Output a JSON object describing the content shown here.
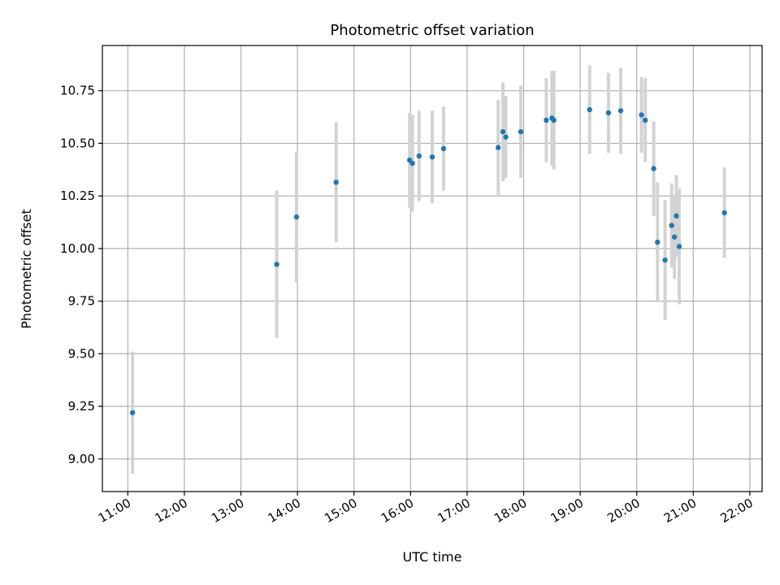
{
  "chart_data": {
    "type": "scatter",
    "title": "Photometric offset variation",
    "xlabel": "UTC time",
    "ylabel": "Photometric offset",
    "xlim": [
      "10:33",
      "22:13"
    ],
    "ylim": [
      8.845,
      10.965
    ],
    "x_ticks": [
      "11:00",
      "12:00",
      "13:00",
      "14:00",
      "15:00",
      "16:00",
      "17:00",
      "18:00",
      "19:00",
      "20:00",
      "21:00",
      "22:00"
    ],
    "y_ticks": [
      "9.00",
      "9.25",
      "9.50",
      "9.75",
      "10.00",
      "10.25",
      "10.50",
      "10.75"
    ],
    "grid": true,
    "marker_color": "#1f77b4",
    "errorbar_color": "#d3d3d3",
    "points": [
      {
        "t": "11:05",
        "y": 9.22,
        "err": 0.29
      },
      {
        "t": "13:38",
        "y": 9.925,
        "err": 0.35
      },
      {
        "t": "13:59",
        "y": 10.15,
        "err": 0.31
      },
      {
        "t": "14:41",
        "y": 10.315,
        "err": 0.285
      },
      {
        "t": "15:59",
        "y": 10.42,
        "err": 0.225
      },
      {
        "t": "16:02",
        "y": 10.405,
        "err": 0.23
      },
      {
        "t": "16:09",
        "y": 10.44,
        "err": 0.215
      },
      {
        "t": "16:23",
        "y": 10.435,
        "err": 0.22
      },
      {
        "t": "16:35",
        "y": 10.475,
        "err": 0.2
      },
      {
        "t": "17:33",
        "y": 10.48,
        "err": 0.225
      },
      {
        "t": "17:38",
        "y": 10.555,
        "err": 0.235
      },
      {
        "t": "17:41",
        "y": 10.53,
        "err": 0.195
      },
      {
        "t": "17:57",
        "y": 10.555,
        "err": 0.22
      },
      {
        "t": "18:24",
        "y": 10.61,
        "err": 0.2
      },
      {
        "t": "18:30",
        "y": 10.62,
        "err": 0.225
      },
      {
        "t": "18:32",
        "y": 10.61,
        "err": 0.235
      },
      {
        "t": "19:10",
        "y": 10.66,
        "err": 0.21
      },
      {
        "t": "19:30",
        "y": 10.645,
        "err": 0.19
      },
      {
        "t": "19:43",
        "y": 10.655,
        "err": 0.205
      },
      {
        "t": "20:05",
        "y": 10.635,
        "err": 0.18
      },
      {
        "t": "20:09",
        "y": 10.61,
        "err": 0.2
      },
      {
        "t": "20:18",
        "y": 10.38,
        "err": 0.225
      },
      {
        "t": "20:22",
        "y": 10.03,
        "err": 0.285
      },
      {
        "t": "20:30",
        "y": 9.945,
        "err": 0.285
      },
      {
        "t": "20:37",
        "y": 10.11,
        "err": 0.2
      },
      {
        "t": "20:40",
        "y": 10.055,
        "err": 0.2
      },
      {
        "t": "20:42",
        "y": 10.155,
        "err": 0.195
      },
      {
        "t": "20:45",
        "y": 10.01,
        "err": 0.275
      },
      {
        "t": "21:33",
        "y": 10.17,
        "err": 0.215
      }
    ]
  }
}
